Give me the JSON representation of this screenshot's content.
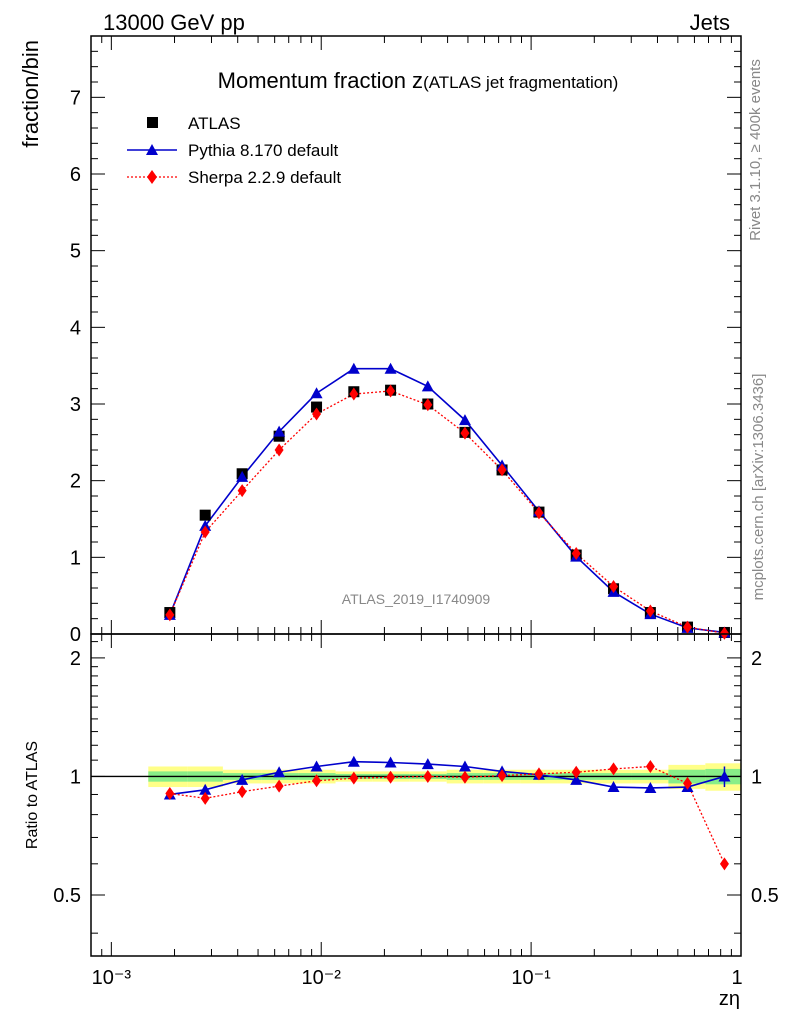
{
  "header": {
    "left": "13000 GeV pp",
    "right": "Jets"
  },
  "side_labels": {
    "rivet": "Rivet 3.1.10, ≥ 400k events",
    "mcplots": "mcplots.cern.ch [arXiv:1306.3436]"
  },
  "chart_data": [
    {
      "type": "scatter",
      "title_main": "Momentum fraction z",
      "title_sub": "(ATLAS jet fragmentation)",
      "ylabel": "fraction/bin",
      "xscale": "log",
      "xlim": [
        0.0008,
        1.0
      ],
      "ylim": [
        0,
        7.8
      ],
      "yticks": [
        0,
        1,
        2,
        3,
        4,
        5,
        6,
        7
      ],
      "watermark": "ATLAS_2019_I1740909",
      "legend_position": "top-left",
      "x": [
        0.0019,
        0.0028,
        0.0042,
        0.0063,
        0.0095,
        0.0143,
        0.0214,
        0.0322,
        0.0484,
        0.0727,
        0.109,
        0.164,
        0.247,
        0.37,
        0.556,
        0.834
      ],
      "series": [
        {
          "name": "ATLAS",
          "marker": "square",
          "color": "#000000",
          "values": [
            0.28,
            1.55,
            2.09,
            2.58,
            2.96,
            3.16,
            3.18,
            3.0,
            2.63,
            2.14,
            1.59,
            1.03,
            0.59,
            0.28,
            0.09,
            0.02
          ]
        },
        {
          "name": "Pythia 8.170 default",
          "marker": "triangle",
          "line": "solid",
          "color": "#0000cc",
          "values": [
            0.25,
            1.41,
            2.05,
            2.64,
            3.14,
            3.46,
            3.46,
            3.23,
            2.79,
            2.2,
            1.6,
            1.01,
            0.55,
            0.26,
            0.08,
            0.02
          ]
        },
        {
          "name": "Sherpa 2.2.9 default",
          "marker": "diamond",
          "line": "dotted",
          "color": "#ff0000",
          "values": [
            0.25,
            1.33,
            1.87,
            2.4,
            2.87,
            3.13,
            3.17,
            2.99,
            2.62,
            2.14,
            1.58,
            1.05,
            0.62,
            0.3,
            0.09,
            0.01
          ]
        }
      ]
    },
    {
      "type": "scatter",
      "ylabel": "Ratio to ATLAS",
      "xlabel": "zη",
      "xscale": "log",
      "xlim": [
        0.0008,
        1.0
      ],
      "ylim": [
        0.35,
        2.3
      ],
      "yticks": [
        0.5,
        1,
        2
      ],
      "ytick_labels": [
        "0.5",
        "1",
        "2"
      ],
      "xticks": [
        0.001,
        0.01,
        0.1,
        1
      ],
      "xtick_labels": [
        "10⁻³",
        "10⁻²",
        "10⁻¹",
        "1"
      ],
      "reference_line": 1,
      "x": [
        0.0019,
        0.0028,
        0.0042,
        0.0063,
        0.0095,
        0.0143,
        0.0214,
        0.0322,
        0.0484,
        0.0727,
        0.109,
        0.164,
        0.247,
        0.37,
        0.556,
        0.834
      ],
      "bands": {
        "edges": [
          0.0015,
          0.0023,
          0.0034,
          0.0052,
          0.0078,
          0.0117,
          0.0176,
          0.0264,
          0.0396,
          0.0594,
          0.0891,
          0.1336,
          0.2004,
          0.3006,
          0.4509,
          0.6764,
          1.0
        ],
        "outer": {
          "color": "#ffff88",
          "lo": [
            0.94,
            0.94,
            0.96,
            0.96,
            0.96,
            0.97,
            0.97,
            0.97,
            0.96,
            0.96,
            0.96,
            0.96,
            0.96,
            0.96,
            0.93,
            0.92
          ],
          "hi": [
            1.06,
            1.06,
            1.04,
            1.04,
            1.04,
            1.03,
            1.03,
            1.03,
            1.04,
            1.04,
            1.04,
            1.04,
            1.04,
            1.04,
            1.07,
            1.08
          ]
        },
        "inner": {
          "color": "#88ee88",
          "lo": [
            0.97,
            0.97,
            0.98,
            0.98,
            0.98,
            0.985,
            0.985,
            0.985,
            0.98,
            0.98,
            0.98,
            0.98,
            0.98,
            0.98,
            0.96,
            0.955
          ],
          "hi": [
            1.03,
            1.03,
            1.02,
            1.02,
            1.02,
            1.015,
            1.015,
            1.015,
            1.02,
            1.02,
            1.02,
            1.02,
            1.02,
            1.02,
            1.04,
            1.045
          ]
        }
      },
      "series": [
        {
          "name": "Pythia 8.170 default",
          "color": "#0000cc",
          "values": [
            0.9,
            0.925,
            0.98,
            1.025,
            1.06,
            1.09,
            1.085,
            1.075,
            1.06,
            1.03,
            1.01,
            0.98,
            0.94,
            0.935,
            0.94,
            1.0
          ]
        },
        {
          "name": "Sherpa 2.2.9 default",
          "color": "#ff0000",
          "values": [
            0.905,
            0.88,
            0.915,
            0.945,
            0.975,
            0.99,
            0.995,
            1.0,
            0.995,
            1.005,
            1.015,
            1.025,
            1.045,
            1.06,
            0.96,
            0.6
          ]
        }
      ]
    }
  ]
}
